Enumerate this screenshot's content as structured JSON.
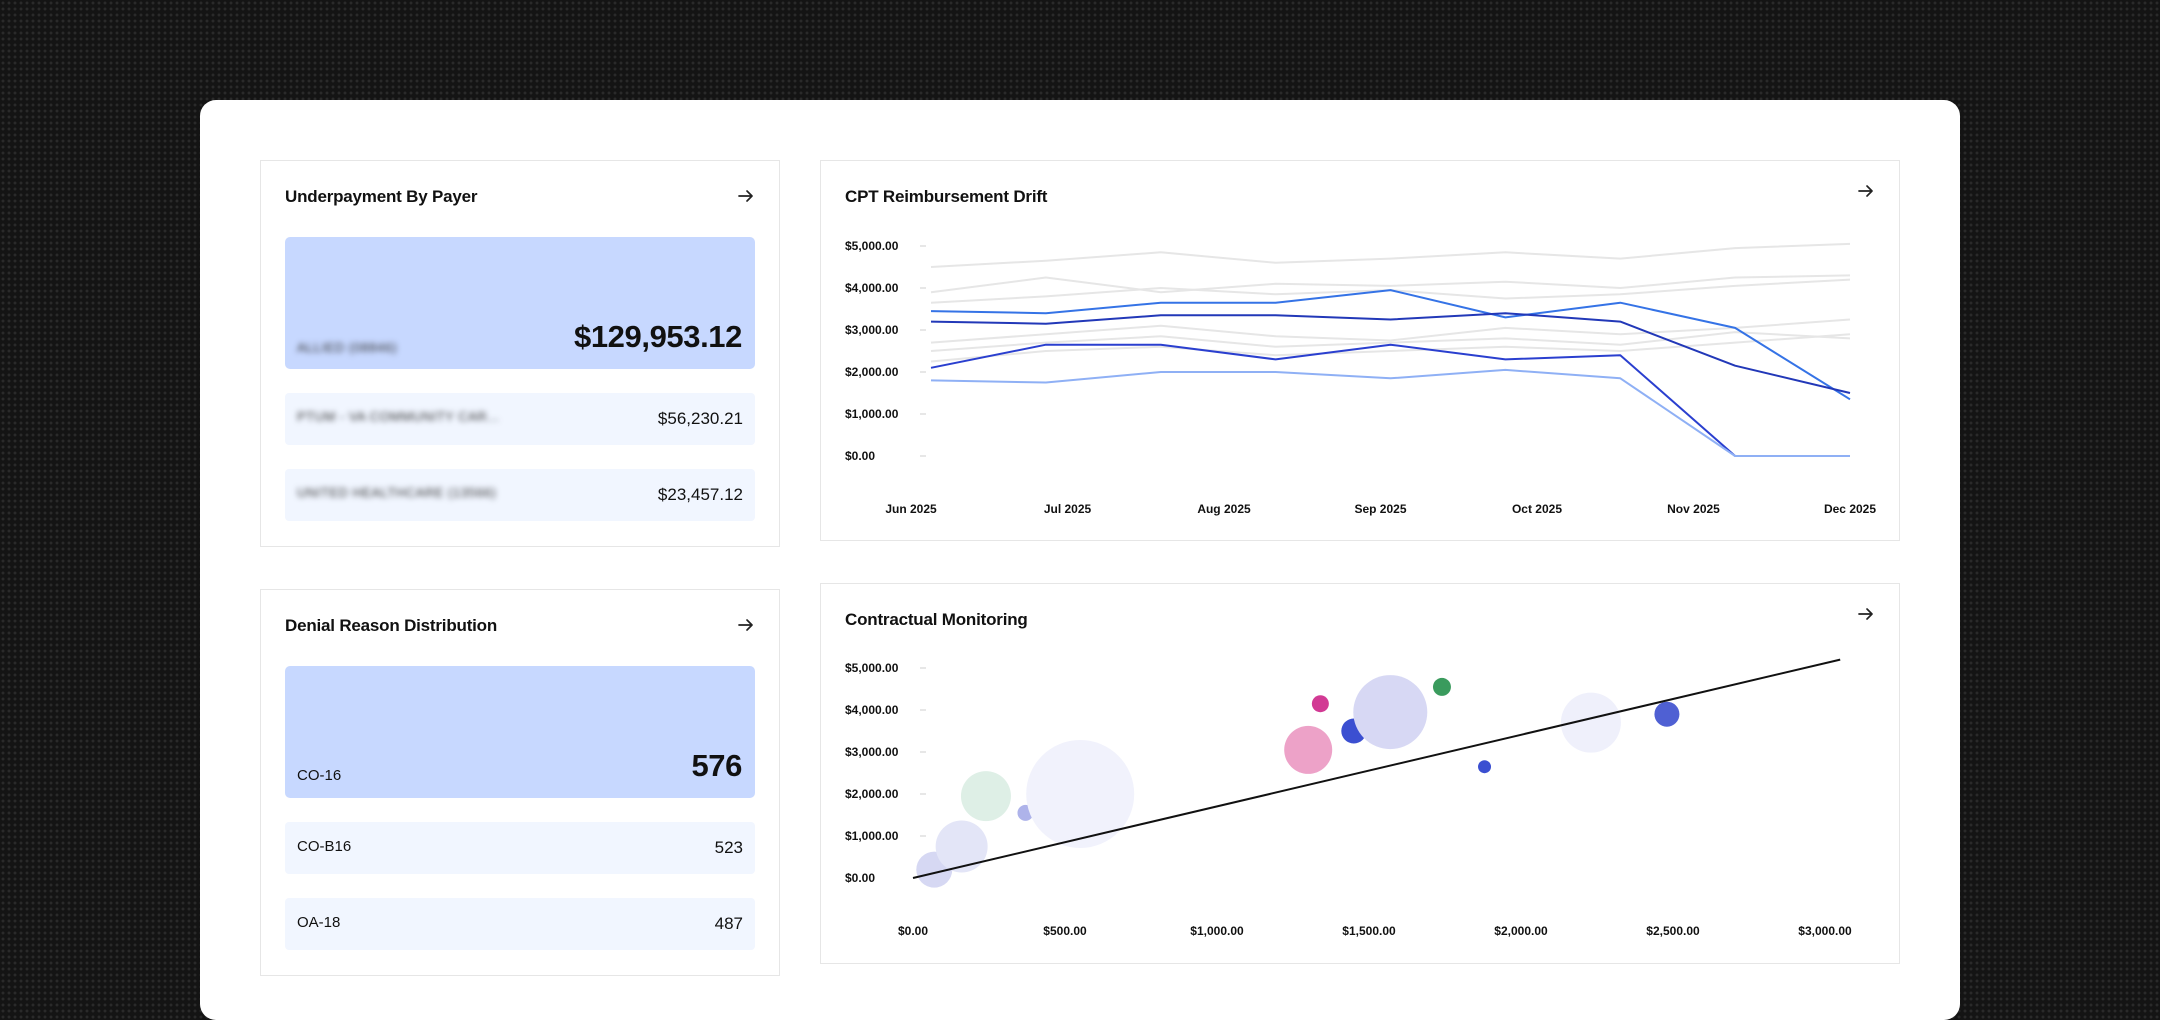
{
  "cards": {
    "underpayment": {
      "title": "Underpayment By Payer",
      "arrow_icon": "arrow-right-icon",
      "top": {
        "label": "ALLIED (08846)",
        "value": "$129,953.12"
      },
      "rows": [
        {
          "label": "PTUM - VA COMMUNITY CAR...",
          "value": "$56,230.21"
        },
        {
          "label": "UNITED HEALTHCARE (13566)",
          "value": "$23,457.12"
        }
      ]
    },
    "denial": {
      "title": "Denial Reason Distribution",
      "arrow_icon": "arrow-right-icon",
      "top": {
        "label": "CO-16",
        "value": "576"
      },
      "rows": [
        {
          "label": "CO-B16",
          "value": "523"
        },
        {
          "label": "OA-18",
          "value": "487"
        }
      ]
    },
    "cpt": {
      "title": "CPT Reimbursement Drift",
      "arrow_icon": "arrow-right-icon"
    },
    "contractual": {
      "title": "Contractual Monitoring",
      "arrow_icon": "arrow-right-icon"
    }
  },
  "chart_data": [
    {
      "type": "line",
      "title": "CPT Reimbursement Drift",
      "x_tick_labels": [
        "Jun 2025",
        "Jul 2025",
        "Aug 2025",
        "Sep 2025",
        "Oct 2025",
        "Nov 2025",
        "Dec 2025"
      ],
      "y_tick_labels": [
        "$0.00",
        "$1,000.00",
        "$2,000.00",
        "$3,000.00",
        "$4,000.00",
        "$5,000.00"
      ],
      "ylim": [
        0,
        5000
      ],
      "x_index_range": [
        0,
        8
      ],
      "series": [
        {
          "color": "#e6e6e6",
          "values": [
            4500,
            4650,
            4850,
            4600,
            4700,
            4850,
            4700,
            4950,
            5050
          ]
        },
        {
          "color": "#e6e6e6",
          "values": [
            3900,
            4250,
            3900,
            4100,
            4050,
            4150,
            4000,
            4250,
            4300
          ]
        },
        {
          "color": "#e6e6e6",
          "values": [
            3650,
            3800,
            4000,
            3850,
            3950,
            3750,
            3850,
            4050,
            4200
          ]
        },
        {
          "color": "#e6e6e6",
          "values": [
            2700,
            2900,
            3100,
            2850,
            2750,
            3050,
            2900,
            3050,
            3250
          ]
        },
        {
          "color": "#e6e6e6",
          "values": [
            2500,
            2700,
            2850,
            2600,
            2700,
            2800,
            2650,
            2950,
            2800
          ]
        },
        {
          "color": "#e6e6e6",
          "values": [
            2250,
            2500,
            2600,
            2400,
            2500,
            2600,
            2500,
            2700,
            2900
          ]
        },
        {
          "color": "#3573e6",
          "values": [
            3450,
            3400,
            3650,
            3650,
            3950,
            3300,
            3650,
            3050,
            1350
          ]
        },
        {
          "color": "#2238b8",
          "values": [
            3200,
            3150,
            3350,
            3350,
            3250,
            3400,
            3200,
            2150,
            1500
          ]
        },
        {
          "color": "#2a3fcf",
          "values": [
            2100,
            2650,
            2650,
            2300,
            2650,
            2300,
            2400,
            0,
            0
          ]
        },
        {
          "color": "#8fb0f5",
          "values": [
            1800,
            1750,
            2000,
            2000,
            1850,
            2050,
            1850,
            0,
            0
          ]
        }
      ]
    },
    {
      "type": "scatter",
      "title": "Contractual Monitoring",
      "x_tick_labels": [
        "$0.00",
        "$500.00",
        "$1,000.00",
        "$1,500.00",
        "$2,000.00",
        "$2,500.00",
        "$3,000.00"
      ],
      "y_tick_labels": [
        "$0.00",
        "$1,000.00",
        "$2,000.00",
        "$3,000.00",
        "$4,000.00",
        "$5,000.00"
      ],
      "xlim": [
        0,
        3000
      ],
      "ylim": [
        0,
        5000
      ],
      "trend_line": {
        "x": [
          0,
          3050
        ],
        "y": [
          0,
          5200
        ],
        "color": "#111111"
      },
      "points": [
        {
          "x": 70,
          "y": 200,
          "size": 36,
          "color": "#d6d8f3"
        },
        {
          "x": 160,
          "y": 750,
          "size": 52,
          "color": "#e3e5f7"
        },
        {
          "x": 240,
          "y": 1950,
          "size": 50,
          "color": "#deefe6"
        },
        {
          "x": 370,
          "y": 1550,
          "size": 16,
          "color": "#aeb3ea"
        },
        {
          "x": 550,
          "y": 2000,
          "size": 108,
          "color": "#f1f2fc"
        },
        {
          "x": 1300,
          "y": 3050,
          "size": 48,
          "color": "#eda2c8"
        },
        {
          "x": 1340,
          "y": 4150,
          "size": 17,
          "color": "#d23a94"
        },
        {
          "x": 1450,
          "y": 3500,
          "size": 25,
          "color": "#3b4fd1"
        },
        {
          "x": 1570,
          "y": 3950,
          "size": 74,
          "color": "#d7d8f4"
        },
        {
          "x": 1740,
          "y": 4550,
          "size": 18,
          "color": "#3a9b5d"
        },
        {
          "x": 1880,
          "y": 2650,
          "size": 13,
          "color": "#3b4fd1"
        },
        {
          "x": 2230,
          "y": 3700,
          "size": 60,
          "color": "#eff0fb"
        },
        {
          "x": 2480,
          "y": 3900,
          "size": 25,
          "color": "#4f60d3"
        }
      ]
    }
  ]
}
